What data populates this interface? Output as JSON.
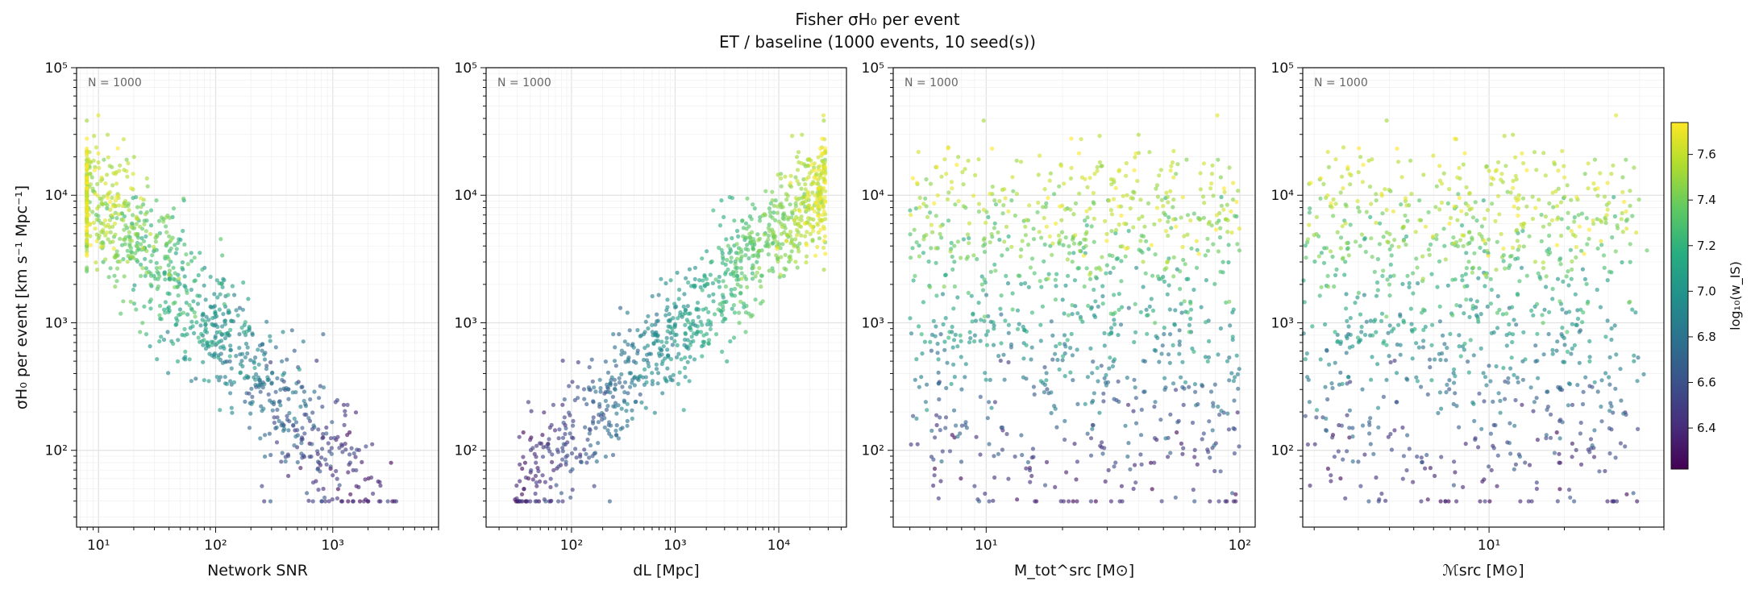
{
  "figure": {
    "title_line1": "Fisher σH₀ per event",
    "title_line2": "ET / baseline  (1000 events, 10 seed(s))"
  },
  "colorbar": {
    "label": "log₁₀(w_IS)",
    "range": [
      6.22,
      7.74
    ],
    "ticks": [
      "6.4",
      "6.6",
      "6.8",
      "7.0",
      "7.2",
      "7.4",
      "7.6"
    ],
    "colormap": [
      "#440154",
      "#472d7b",
      "#3b528b",
      "#2c728e",
      "#21918c",
      "#28ae80",
      "#5ec962",
      "#addc30",
      "#fde725"
    ]
  },
  "chart_data": [
    {
      "type": "scatter",
      "name": "snr",
      "xlabel": "Network SNR",
      "ylabel": "σH₀ per event [km s⁻¹ Mpc⁻¹]",
      "xscale": "log",
      "yscale": "log",
      "xlim": [
        6.5,
        8000
      ],
      "ylim": [
        25,
        100000
      ],
      "xticks": [
        {
          "v": 10,
          "label": "10¹"
        },
        {
          "v": 100,
          "label": "10²"
        },
        {
          "v": 1000,
          "label": "10³"
        }
      ],
      "yticks": [
        {
          "v": 100,
          "label": "10²"
        },
        {
          "v": 1000,
          "label": "10³"
        },
        {
          "v": 10000,
          "label": "10⁴"
        },
        {
          "v": 100000,
          "label": "10⁵"
        }
      ],
      "annotation": "N = 1000",
      "n_points": 1000
    },
    {
      "type": "scatter",
      "name": "dl",
      "xlabel": "dL [Mpc]",
      "xscale": "log",
      "yscale": "log",
      "xlim": [
        15,
        45000
      ],
      "ylim": [
        25,
        100000
      ],
      "xticks": [
        {
          "v": 100,
          "label": "10²"
        },
        {
          "v": 1000,
          "label": "10³"
        },
        {
          "v": 10000,
          "label": "10⁴"
        }
      ],
      "yticks": [
        {
          "v": 100,
          "label": "10²"
        },
        {
          "v": 1000,
          "label": "10³"
        },
        {
          "v": 10000,
          "label": "10⁴"
        },
        {
          "v": 100000,
          "label": "10⁵"
        }
      ],
      "annotation": "N = 1000",
      "n_points": 1000
    },
    {
      "type": "scatter",
      "name": "mtot",
      "xlabel": "M_tot^src [M⊙]",
      "xscale": "log",
      "yscale": "log",
      "xlim": [
        4.3,
        115
      ],
      "ylim": [
        25,
        100000
      ],
      "xticks": [
        {
          "v": 10,
          "label": "10¹"
        },
        {
          "v": 100,
          "label": "10²"
        }
      ],
      "yticks": [
        {
          "v": 100,
          "label": "10²"
        },
        {
          "v": 1000,
          "label": "10³"
        },
        {
          "v": 10000,
          "label": "10⁴"
        },
        {
          "v": 100000,
          "label": "10⁵"
        }
      ],
      "annotation": "N = 1000",
      "n_points": 1000
    },
    {
      "type": "scatter",
      "name": "mchirp",
      "xlabel": "ℳsrc [M⊙]",
      "xscale": "log",
      "yscale": "log",
      "xlim": [
        1.8,
        50
      ],
      "ylim": [
        25,
        100000
      ],
      "xticks": [
        {
          "v": 10,
          "label": "10¹"
        }
      ],
      "yticks": [
        {
          "v": 100,
          "label": "10²"
        },
        {
          "v": 1000,
          "label": "10³"
        },
        {
          "v": 10000,
          "label": "10⁴"
        },
        {
          "v": 100000,
          "label": "10⁵"
        }
      ],
      "annotation": "N = 1000",
      "n_points": 1000
    }
  ]
}
